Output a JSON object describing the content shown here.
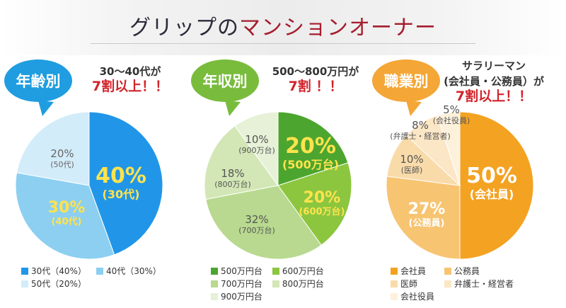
{
  "title": {
    "part1": "グリップの",
    "part2": "マンションオーナー"
  },
  "colors": {
    "title_dark": "#2a2a3a",
    "title_red": "#a51d2d",
    "highlight_red": "#d2232a"
  },
  "chart_data": [
    {
      "type": "pie",
      "badge": "年齢別",
      "badge_color": "#1f9de0",
      "callout": {
        "line1": "30～40代が",
        "line2": "7割以上！！",
        "line3": ""
      },
      "slices": [
        {
          "name": "30代",
          "value": 40,
          "pct": "40%",
          "sub": "(30代)",
          "color": "#2196e8",
          "text_color": "#ffe34d",
          "size": "big"
        },
        {
          "name": "40代",
          "value": 30,
          "pct": "30%",
          "sub": "(40代)",
          "color": "#8ccff1",
          "text_color": "#ffe34d",
          "size": "med"
        },
        {
          "name": "50代",
          "value": 20,
          "pct": "20%",
          "sub": "(50代)",
          "color": "#d3ecfa",
          "text_color": "#666666",
          "size": "small"
        }
      ],
      "legend": [
        "30代（40%）",
        "40代（30%）",
        "50代（20%）"
      ]
    },
    {
      "type": "pie",
      "badge": "年収別",
      "badge_color": "#79bc3c",
      "callout": {
        "line1": "500～800万円が",
        "line2": "7割 ！！",
        "line3": ""
      },
      "slices": [
        {
          "name": "500万円台",
          "value": 20,
          "pct": "20%",
          "sub": "(500万台)",
          "color": "#4ca52e",
          "text_color": "#ffe34d",
          "size": "big"
        },
        {
          "name": "600万円台",
          "value": 20,
          "pct": "20%",
          "sub": "(600万台)",
          "color": "#8cc63f",
          "text_color": "#ffe34d",
          "size": "med"
        },
        {
          "name": "700万円台",
          "value": 32,
          "pct": "32%",
          "sub": "(700万台)",
          "color": "#b8d98f",
          "text_color": "#555555",
          "size": "small"
        },
        {
          "name": "800万円台",
          "value": 18,
          "pct": "18%",
          "sub": "(800万台)",
          "color": "#d3e7b6",
          "text_color": "#555555",
          "size": "small"
        },
        {
          "name": "900万円台",
          "value": 10,
          "pct": "10%",
          "sub": "(900万台)",
          "color": "#e6f1d7",
          "text_color": "#555555",
          "size": "small"
        }
      ],
      "legend": [
        "500万円台",
        "600万円台",
        "700万円台",
        "800万円台",
        "900万円台"
      ]
    },
    {
      "type": "pie",
      "badge": "職業別",
      "badge_color": "#f4a636",
      "callout": {
        "line1": "サラリーマン",
        "line2": "(会社員・公務員）が",
        "line3": "7割以上！！"
      },
      "slices": [
        {
          "name": "会社員",
          "value": 50,
          "pct": "50%",
          "sub": "(会社員)",
          "color": "#f4a222",
          "text_color": "#ffffff",
          "size": "big"
        },
        {
          "name": "公務員",
          "value": 27,
          "pct": "27%",
          "sub": "(公務員)",
          "color": "#f7c472",
          "text_color": "#ffffff",
          "size": "med"
        },
        {
          "name": "医師",
          "value": 10,
          "pct": "10%",
          "sub": "(医師)",
          "color": "#f9dbaa",
          "text_color": "#555555",
          "size": "small"
        },
        {
          "name": "弁護士・経営者",
          "value": 8,
          "pct": "8%",
          "sub": "(弁護士・経営者)",
          "color": "#fbe6c5",
          "text_color": "#555555",
          "size": "small"
        },
        {
          "name": "会社役員",
          "value": 5,
          "pct": "5%",
          "sub": "(会社役員)",
          "color": "#fdf1dc",
          "text_color": "#555555",
          "size": "small"
        }
      ],
      "legend": [
        "会社員",
        "公務員",
        "医師",
        "弁護士・経営者",
        "会社役員"
      ]
    }
  ]
}
